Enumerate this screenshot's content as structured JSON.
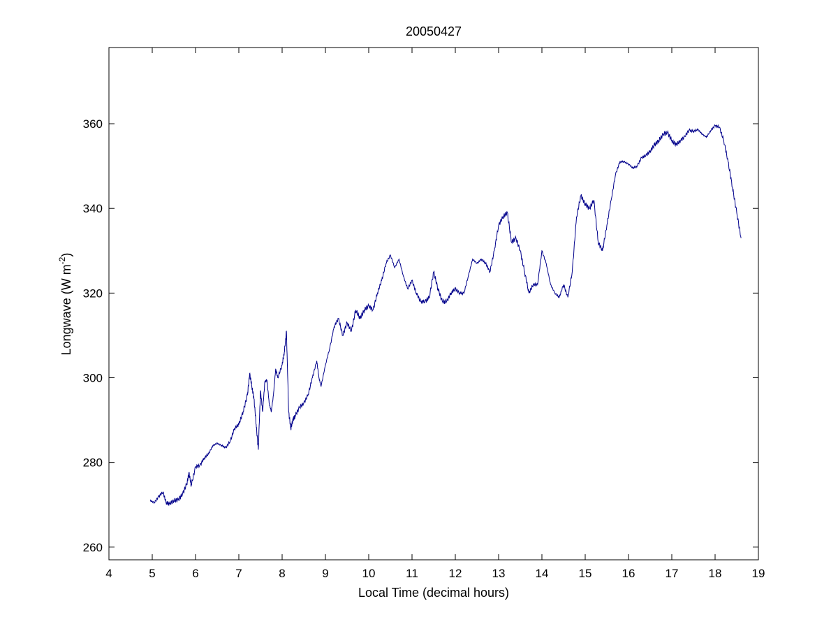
{
  "chart_data": {
    "type": "line",
    "title": "20050427",
    "xlabel": "Local Time (decimal hours)",
    "ylabel_main": "Longwave (W m",
    "ylabel_sup": "-2",
    "ylabel_close": ")",
    "xlim": [
      4,
      19
    ],
    "ylim": [
      257,
      378
    ],
    "xticks": [
      4,
      5,
      6,
      7,
      8,
      9,
      10,
      11,
      12,
      13,
      14,
      15,
      16,
      17,
      18,
      19
    ],
    "yticks": [
      260,
      280,
      300,
      320,
      340,
      360
    ],
    "grid": false,
    "line_color": "#00008b",
    "series": [
      {
        "x": [
          4.95,
          5.05,
          5.15,
          5.25,
          5.32,
          5.4,
          5.5,
          5.6,
          5.7,
          5.8,
          5.85,
          5.9,
          6.0,
          6.1,
          6.2,
          6.3,
          6.4,
          6.5,
          6.6,
          6.7,
          6.8,
          6.9,
          7.0,
          7.1,
          7.2,
          7.25,
          7.3,
          7.35,
          7.4,
          7.45,
          7.5,
          7.55,
          7.6,
          7.65,
          7.7,
          7.75,
          7.8,
          7.85,
          7.9,
          8.0,
          8.05,
          8.1,
          8.15,
          8.2,
          8.25,
          8.3,
          8.4,
          8.5,
          8.6,
          8.7,
          8.8,
          8.85,
          8.9,
          9.0,
          9.1,
          9.2,
          9.3,
          9.4,
          9.5,
          9.6,
          9.7,
          9.8,
          9.9,
          10.0,
          10.1,
          10.2,
          10.3,
          10.4,
          10.5,
          10.6,
          10.7,
          10.8,
          10.9,
          11.0,
          11.1,
          11.2,
          11.3,
          11.4,
          11.5,
          11.6,
          11.7,
          11.8,
          11.9,
          12.0,
          12.1,
          12.2,
          12.3,
          12.4,
          12.5,
          12.6,
          12.7,
          12.8,
          12.9,
          13.0,
          13.1,
          13.2,
          13.3,
          13.4,
          13.5,
          13.6,
          13.7,
          13.8,
          13.9,
          14.0,
          14.1,
          14.2,
          14.3,
          14.4,
          14.5,
          14.6,
          14.7,
          14.8,
          14.9,
          15.0,
          15.1,
          15.2,
          15.3,
          15.4,
          15.5,
          15.6,
          15.7,
          15.8,
          15.9,
          16.0,
          16.1,
          16.2,
          16.3,
          16.4,
          16.5,
          16.6,
          16.7,
          16.8,
          16.9,
          17.0,
          17.1,
          17.2,
          17.3,
          17.4,
          17.5,
          17.6,
          17.7,
          17.8,
          17.9,
          18.0,
          18.1,
          18.2,
          18.3,
          18.4,
          18.5,
          18.6
        ],
        "y": [
          271,
          270.5,
          272,
          273,
          270.5,
          270.2,
          271,
          271.2,
          272.5,
          275,
          277.5,
          274.5,
          279,
          279.3,
          281,
          282,
          284,
          284.5,
          284,
          283.5,
          285,
          288,
          289,
          292,
          296,
          301,
          298,
          295,
          289,
          283,
          297,
          292,
          299,
          299.5,
          294,
          292,
          296,
          302,
          300,
          303,
          306,
          311,
          292,
          288,
          290,
          291,
          293,
          294,
          296,
          300,
          304,
          300,
          298,
          303,
          307,
          312,
          314,
          310,
          313,
          311,
          316,
          314,
          316,
          317,
          316,
          320,
          323,
          327,
          329,
          326,
          328,
          324,
          321,
          323,
          320,
          318,
          318,
          319,
          325,
          321,
          318,
          318,
          320,
          321,
          320,
          320,
          324,
          328,
          327,
          328,
          327,
          325,
          330,
          336,
          338,
          339,
          332,
          333,
          330,
          325,
          320,
          322,
          322,
          330,
          327,
          322,
          320,
          319,
          322,
          319,
          325,
          338,
          343,
          341,
          340,
          342,
          332,
          330,
          336,
          342,
          348,
          351,
          351,
          350.5,
          349.5,
          350,
          352,
          352.5,
          353.5,
          355,
          356,
          357.5,
          358,
          356,
          355,
          356,
          357,
          358.5,
          358.2,
          358.6,
          357.6,
          356.8,
          358.4,
          359.6,
          359.2,
          356,
          351,
          345,
          339,
          333
        ]
      }
    ]
  }
}
